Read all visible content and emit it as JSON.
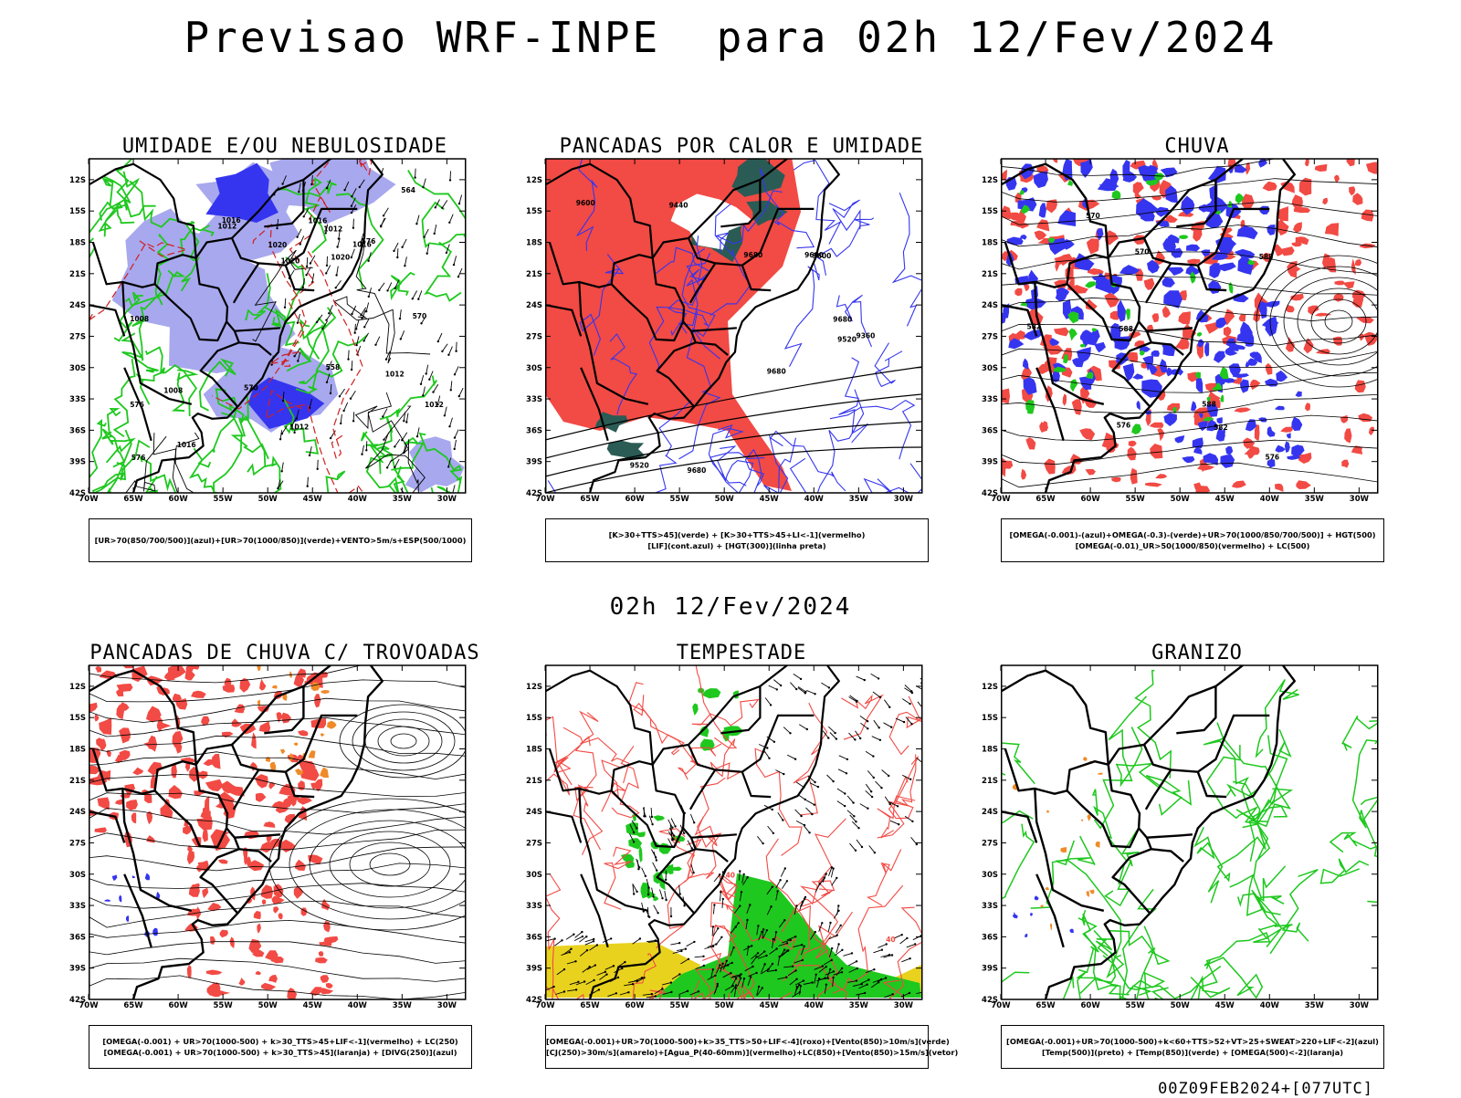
{
  "page": {
    "title": "Previsao WRF-INPE  para 02h 12/Fev/2024",
    "middle_date": "02h 12/Fev/2024",
    "run_info": "00Z09FEB2024+[077UTC]"
  },
  "axes": {
    "lat_labels": [
      "12S",
      "15S",
      "18S",
      "21S",
      "24S",
      "27S",
      "30S",
      "33S",
      "36S",
      "39S",
      "42S"
    ],
    "lon_labels": [
      "70W",
      "65W",
      "60W",
      "55W",
      "50W",
      "45W",
      "40W",
      "35W",
      "30W"
    ]
  },
  "colors": {
    "red": "#f24a44",
    "blue": "#3535f0",
    "lightblue": "#a8a8ee",
    "green": "#1ec81e",
    "teal": "#2b5b55",
    "orange": "#f08a28",
    "yellow": "#e8d21e",
    "darkred": "#d02020"
  },
  "panels": [
    {
      "id": "umidade",
      "title": "UMIDADE E/OU NEBULOSIDADE",
      "caption": [
        "[UR>70(850/700/500)](azul)+[UR>70(1000/850)](verde)+VENTO>5m/s+ESP(500/1000)"
      ],
      "contour_labels": [
        "1012",
        "1016",
        "1016",
        "1020",
        "1016",
        "1012",
        "1020",
        "1008",
        "1012",
        "1008",
        "1020",
        "1012",
        "1012",
        "576",
        "570",
        "564",
        "558",
        "570",
        "576",
        "576",
        "1016"
      ]
    },
    {
      "id": "pancadas-calor",
      "title": "PANCADAS POR CALOR E UMIDADE",
      "caption": [
        "[K>30+TTS>45](verde) + [K>30+TTS>45+LI<-1](vermelho)",
        "[LIF](cont.azul) + [HGT(300)](linha preta)"
      ],
      "contour_labels": [
        "9680",
        "9680",
        "9680",
        "9600",
        "9600",
        "9680",
        "9520",
        "9440",
        "9360",
        "9600",
        "9520"
      ]
    },
    {
      "id": "chuva",
      "title": "CHUVA",
      "caption": [
        "[OMEGA(-0.001)-(azul)+OMEGA(-0.3)-(verde)+UR>70(1000/850/700/500)] + HGT(500)",
        "[OMEGA(-0.01)_UR>50(1000/850)(vermelho) + LC(500)"
      ],
      "contour_labels": [
        "588",
        "588",
        "582",
        "576",
        "570",
        "582",
        "576",
        "570",
        "588"
      ]
    },
    {
      "id": "pancadas-trovoadas",
      "title": "PANCADAS DE CHUVA C/ TROVOADAS",
      "caption": [
        "[OMEGA(-0.001) + UR>70(1000-500) + k>30_TTS>45+LIF<-1](vermelho) + LC(250)",
        "[OMEGA(-0.001) + UR>70(1000-500) + k>30_TTS>45](laranja) + [DIVG(250)](azul)"
      ],
      "contour_labels": []
    },
    {
      "id": "tempestade",
      "title": "TEMPESTADE",
      "caption": [
        "[OMEGA(-0.001)+UR>70(1000-500)+k>35_TTS>50+LIF<-4](roxo)+[Vento(850)>10m/s](verde)",
        "[CJ(250)>30m/s](amarelo)+[Agua_P(40-60mm)](vermelho)+LC(850)+[Vento(850)>15m/s](vetor)"
      ],
      "contour_labels": [
        "40",
        "40"
      ]
    },
    {
      "id": "granizo",
      "title": "GRANIZO",
      "caption": [
        "[OMEGA(-0.001)+UR>70(1000-500)+k<60+TTS>52+VT>25+SWEAT>220+LIF<-2](azul)",
        "[Temp(500)](preto) + [Temp(850)](verde) + [OMEGA(500)<-2](laranja)"
      ],
      "contour_labels": []
    }
  ]
}
